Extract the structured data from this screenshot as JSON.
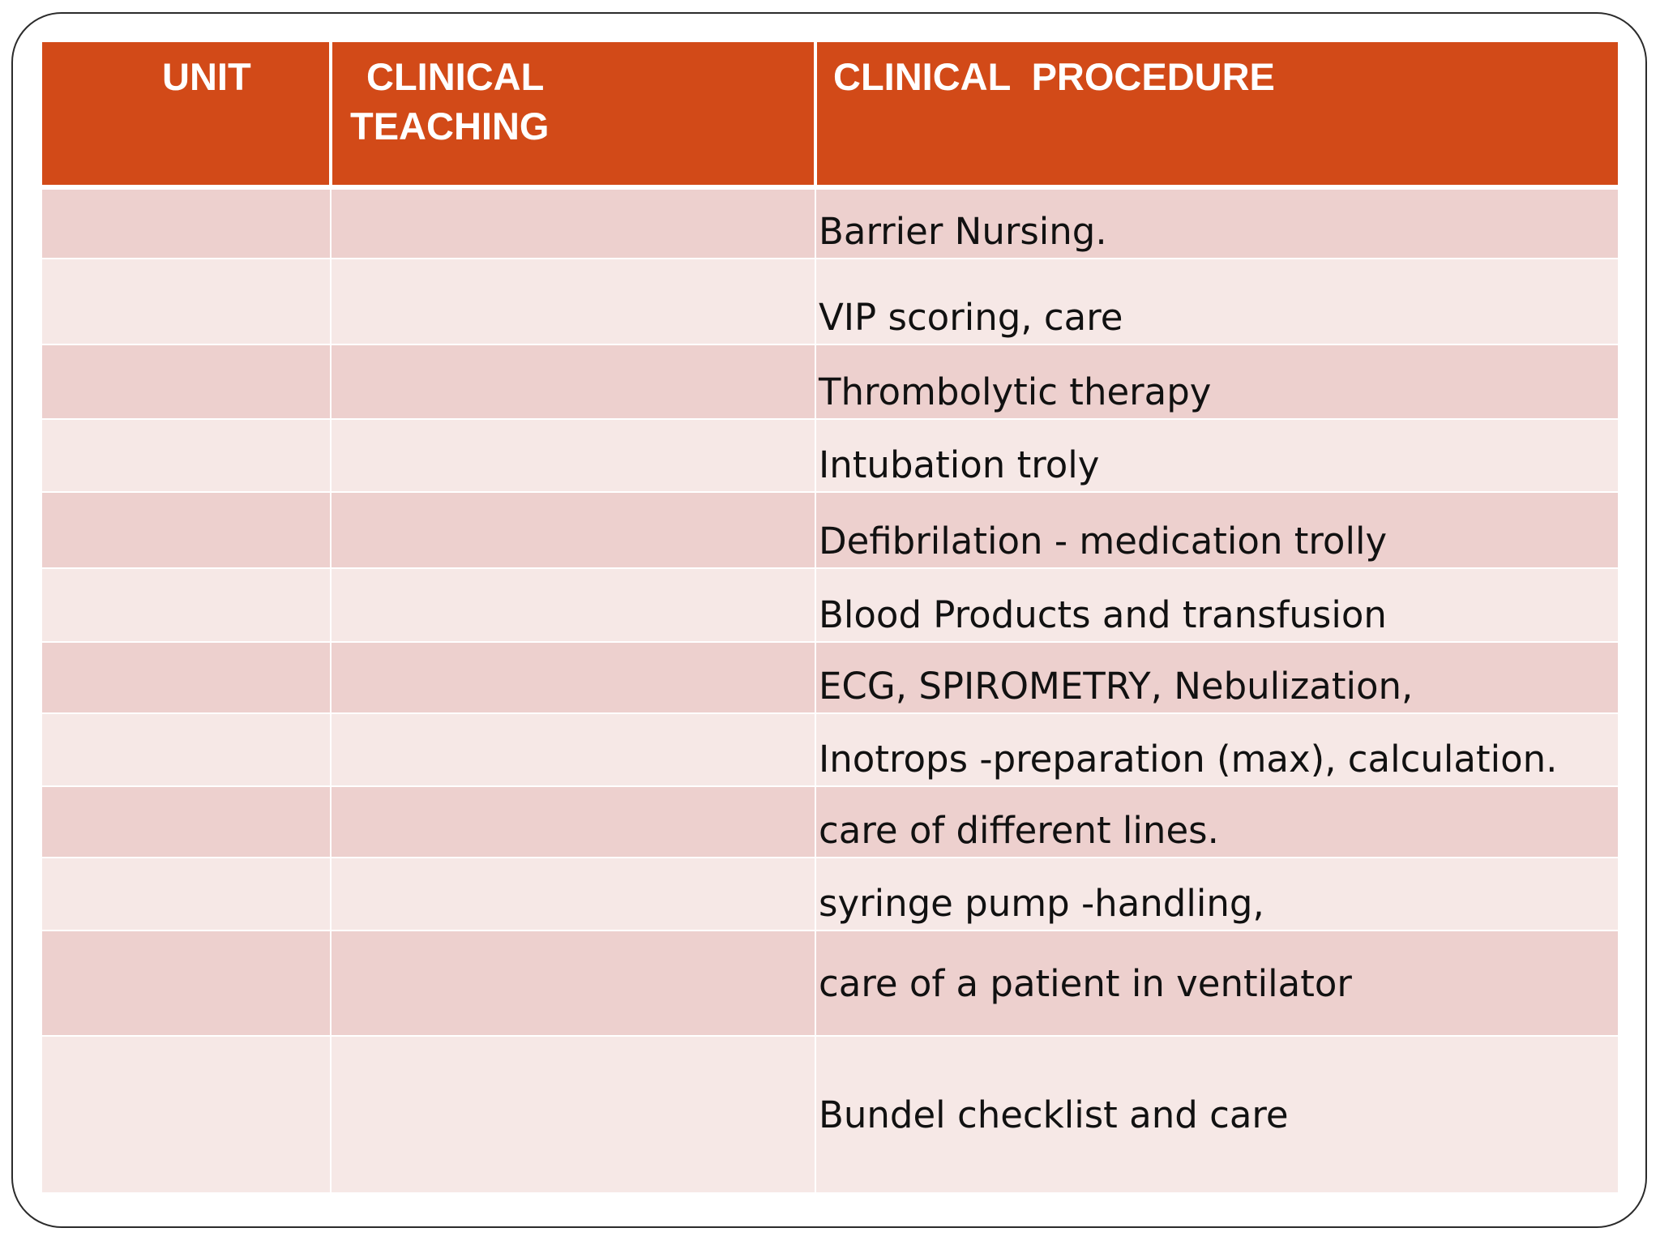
{
  "table": {
    "headers": {
      "unit": "UNIT",
      "clinical_teaching_line1": "CLINICAL",
      "clinical_teaching_line2": "TEACHING",
      "clinical_procedure": "CLINICAL  PROCEDURE"
    },
    "rows": [
      {
        "unit": "",
        "teaching": "",
        "procedure": "Barrier Nursing."
      },
      {
        "unit": "",
        "teaching": "",
        "procedure": "VIP scoring, care"
      },
      {
        "unit": "",
        "teaching": "",
        "procedure": "Thrombolytic therapy"
      },
      {
        "unit": "",
        "teaching": "",
        "procedure": "Intubation troly"
      },
      {
        "unit": "",
        "teaching": "",
        "procedure": "Defibrilation - medication trolly"
      },
      {
        "unit": "",
        "teaching": "",
        "procedure": "Blood Products and transfusion"
      },
      {
        "unit": "",
        "teaching": "",
        "procedure": "ECG, SPIROMETRY, Nebulization,"
      },
      {
        "unit": "",
        "teaching": "",
        "procedure": "Inotrops -preparation (max), calculation."
      },
      {
        "unit": "",
        "teaching": "",
        "procedure": "care of different lines."
      },
      {
        "unit": "",
        "teaching": "",
        "procedure": "syringe pump -handling,"
      },
      {
        "unit": "",
        "teaching": "",
        "procedure": "care of a patient in ventilator"
      },
      {
        "unit": "",
        "teaching": "",
        "procedure": "Bundel checklist and care"
      }
    ]
  },
  "colors": {
    "header_bg": "#d24a18",
    "row_dark": "#edd0ce",
    "row_light": "#f6e8e6"
  }
}
